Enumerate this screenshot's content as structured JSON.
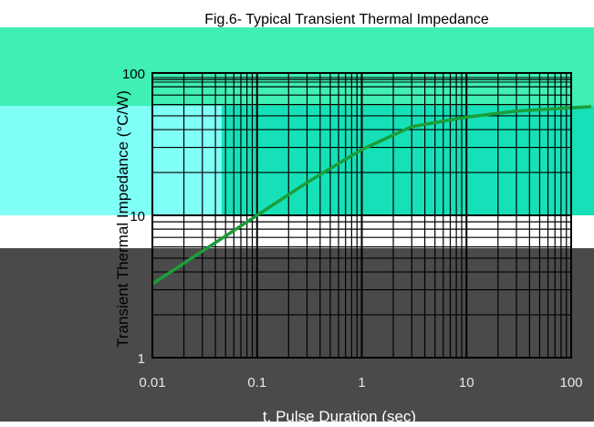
{
  "chart_data": {
    "type": "line",
    "title": "Fig.6- Typical Transient Thermal Impedance",
    "xlabel": "t, Pulse Duration (sec)",
    "ylabel": "Transient Thermal Impedance (°C/W)",
    "x_scale": "log",
    "y_scale": "log",
    "xlim": [
      0.01,
      100
    ],
    "ylim": [
      1,
      100
    ],
    "grid": true,
    "x_ticks": [
      "0.01",
      "0.1",
      "1",
      "10",
      "100"
    ],
    "y_ticks": [
      "1",
      "10",
      "100"
    ],
    "series": [
      {
        "x": [
          0.01,
          0.03,
          0.1,
          0.3,
          1,
          3,
          10,
          30,
          100,
          200
        ],
        "y": [
          3.3,
          5.6,
          10,
          17,
          29,
          42,
          49,
          54,
          57,
          58
        ]
      }
    ]
  },
  "colors": {
    "curve": "#1a9e3a",
    "grid": "#000000",
    "band_top": "#3fefb4",
    "band_mid": "#16e0b8",
    "band_cyan": "#80fff7",
    "band_dark": "#4a4a4a"
  }
}
